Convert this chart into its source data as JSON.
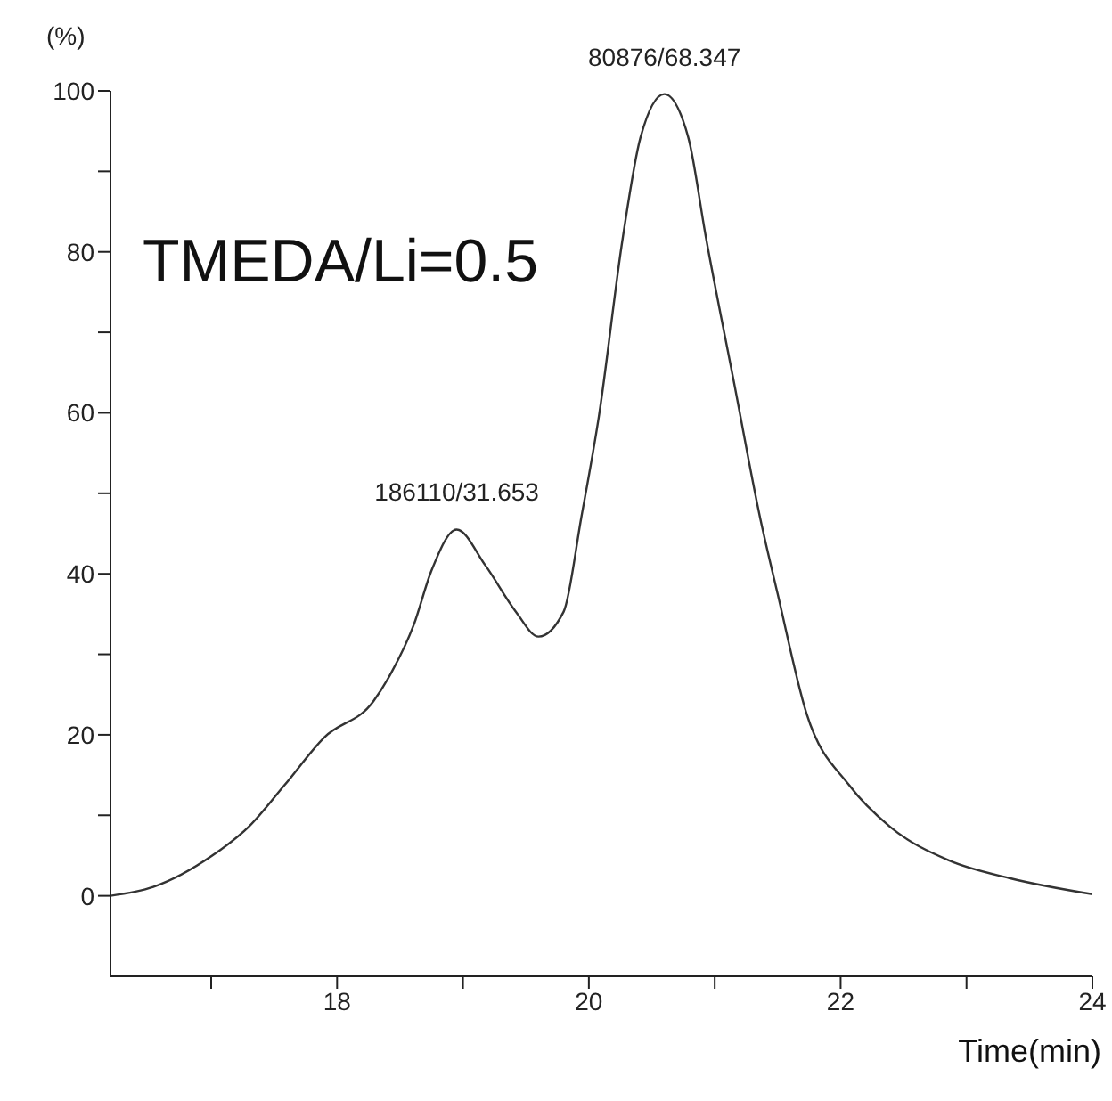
{
  "chart_data": {
    "type": "line",
    "xlabel": "Time(min)",
    "ylabel": "(%)",
    "x": [
      16.2,
      16.54,
      17.0,
      17.3,
      17.58,
      17.9,
      18.29,
      18.43,
      18.61,
      18.75,
      18.95,
      19.18,
      19.42,
      19.6,
      19.8,
      19.94,
      20.08,
      20.27,
      20.41,
      20.6,
      20.79,
      20.93,
      21.16,
      21.36,
      21.5,
      21.73,
      22.07,
      22.39,
      22.86,
      23.34,
      24.0
    ],
    "series": [
      {
        "color": "#333333",
        "values": [
          0,
          1.1,
          4.9,
          8.6,
          13.7,
          19.7,
          24.2,
          27.7,
          33.7,
          40.4,
          45.5,
          41,
          35.3,
          32.2,
          35.3,
          47,
          59.6,
          81.8,
          94.2,
          99.6,
          94.2,
          81.8,
          63.2,
          47,
          37.5,
          22.6,
          13.7,
          8.6,
          4.4,
          2.2,
          0.2
        ]
      }
    ],
    "xlim": [
      16.2,
      24
    ],
    "ylim": [
      -10,
      100
    ],
    "xticks": [
      {
        "value": 17,
        "label": null
      },
      18,
      {
        "value": 19,
        "label": null
      },
      20,
      {
        "value": 21,
        "label": null
      },
      22,
      {
        "value": 23,
        "label": null
      },
      24
    ],
    "yticks": [
      0,
      {
        "value": 10,
        "label": null
      },
      20,
      {
        "value": 30,
        "label": null
      },
      40,
      {
        "value": 50,
        "label": null
      },
      60,
      {
        "value": 70,
        "label": null
      },
      80,
      {
        "value": 90,
        "label": null
      },
      100
    ],
    "annotations": [
      {
        "text": "186110/31.653",
        "x": 18.95,
        "y": 45.5
      },
      {
        "text": "80876/68.347",
        "x": 20.6,
        "y": 99.6
      },
      "TMEDA/Li=0.5"
    ]
  }
}
